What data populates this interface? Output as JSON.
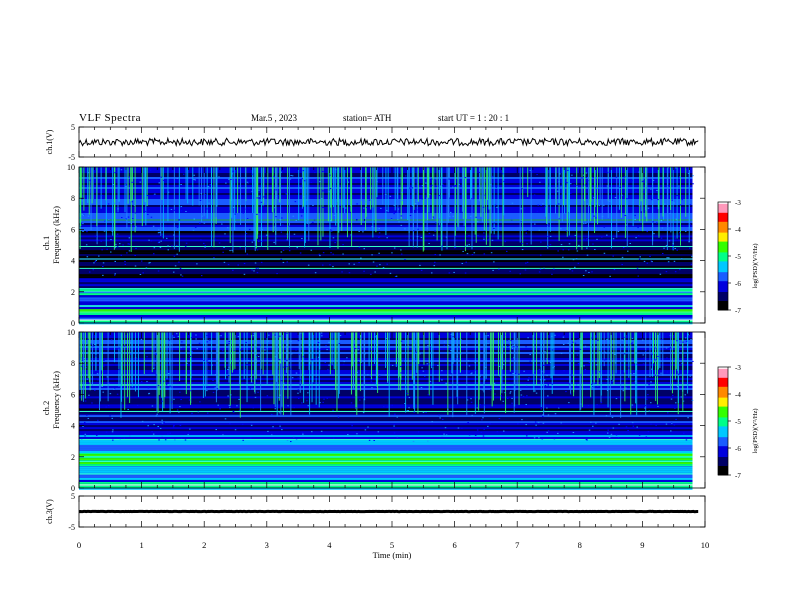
{
  "header": {
    "title": "VLF  Spectra",
    "date": "Mar.5  , 2023",
    "station": "station= ATH",
    "start_ut": "start  UT  =   1  : 20 : 1"
  },
  "colors": {
    "spec_scale": [
      "#000000",
      "#000066",
      "#0000ff",
      "#0066ff",
      "#00ccff",
      "#00ff99",
      "#33ff00",
      "#ffff00",
      "#ff9900",
      "#ff0000",
      "#ff88aa",
      "#ffffff"
    ]
  },
  "chart_data": [
    {
      "type": "line",
      "panel": "ch1-waveform",
      "ylabel": "ch.1(V)",
      "yticks": [
        "5",
        "-5"
      ],
      "ylim": [
        -5,
        5
      ],
      "xlim": [
        0,
        10
      ],
      "level": 0.0,
      "noise": 0.4
    },
    {
      "type": "heatmap",
      "panel": "ch1-spectrogram",
      "ylabel_top": "ch.1",
      "ylabel": "Frequency  (kHz)",
      "yticks": [
        "10",
        "8",
        "6",
        "4",
        "2",
        "0"
      ],
      "ylim": [
        0,
        10
      ],
      "xlim": [
        0,
        9.8
      ],
      "colorbar": {
        "label": "log(PSD)(V²/Hz)",
        "ticks": [
          "-3",
          "-4",
          "-5",
          "-6",
          "-7"
        ],
        "range": [
          -7,
          -3
        ]
      },
      "bands_khz": [
        {
          "from": 0.0,
          "to": 0.3,
          "level": -5.2
        },
        {
          "from": 0.3,
          "to": 0.6,
          "level": -6.0
        },
        {
          "from": 0.6,
          "to": 0.9,
          "level": -4.6
        },
        {
          "from": 0.9,
          "to": 1.4,
          "level": -5.8
        },
        {
          "from": 1.4,
          "to": 1.9,
          "level": -6.1
        },
        {
          "from": 1.9,
          "to": 2.3,
          "level": -5.3
        },
        {
          "from": 2.3,
          "to": 3.0,
          "level": -6.3
        },
        {
          "from": 3.0,
          "to": 4.8,
          "level": -6.8
        },
        {
          "from": 4.8,
          "to": 6.0,
          "level": -6.4
        },
        {
          "from": 6.0,
          "to": 10.0,
          "level": -6.1
        }
      ],
      "lines_khz": [
        0.7,
        1.1,
        2.0,
        2.2,
        3.5,
        4.1,
        4.9,
        6.6
      ]
    },
    {
      "type": "heatmap",
      "panel": "ch2-spectrogram",
      "ylabel_top": "ch.2",
      "ylabel": "Frequency  (kHz)",
      "yticks": [
        "10",
        "8",
        "6",
        "4",
        "2",
        "0"
      ],
      "ylim": [
        0,
        10
      ],
      "xlim": [
        0,
        9.8
      ],
      "colorbar": {
        "label": "log(PSD)(V²/Hz)",
        "ticks": [
          "-3",
          "-4",
          "-5",
          "-6",
          "-7"
        ],
        "range": [
          -7,
          -3
        ]
      },
      "bands_khz": [
        {
          "from": 0.0,
          "to": 0.4,
          "level": -5.0
        },
        {
          "from": 0.4,
          "to": 0.9,
          "level": -5.6
        },
        {
          "from": 0.9,
          "to": 1.5,
          "level": -5.4
        },
        {
          "from": 1.5,
          "to": 2.3,
          "level": -4.8
        },
        {
          "from": 2.3,
          "to": 3.4,
          "level": -5.6
        },
        {
          "from": 3.4,
          "to": 4.8,
          "level": -6.2
        },
        {
          "from": 4.8,
          "to": 6.0,
          "level": -6.4
        },
        {
          "from": 6.0,
          "to": 10.0,
          "level": -6.1
        }
      ],
      "lines_khz": [
        0.9,
        1.7,
        2.0,
        3.1,
        4.9,
        6.6
      ]
    },
    {
      "type": "line",
      "panel": "ch3-waveform",
      "ylabel": "ch.3(V)",
      "yticks": [
        "5",
        "-5"
      ],
      "ylim": [
        -5,
        5
      ],
      "xlim": [
        0,
        10
      ],
      "level": 0.0,
      "noise": 0.05
    }
  ],
  "xaxis": {
    "label": "Time  (min)",
    "ticks": [
      "0",
      "1",
      "2",
      "3",
      "4",
      "5",
      "6",
      "7",
      "8",
      "9",
      "10"
    ],
    "xlim": [
      0,
      10
    ],
    "data_extent": 9.8
  }
}
